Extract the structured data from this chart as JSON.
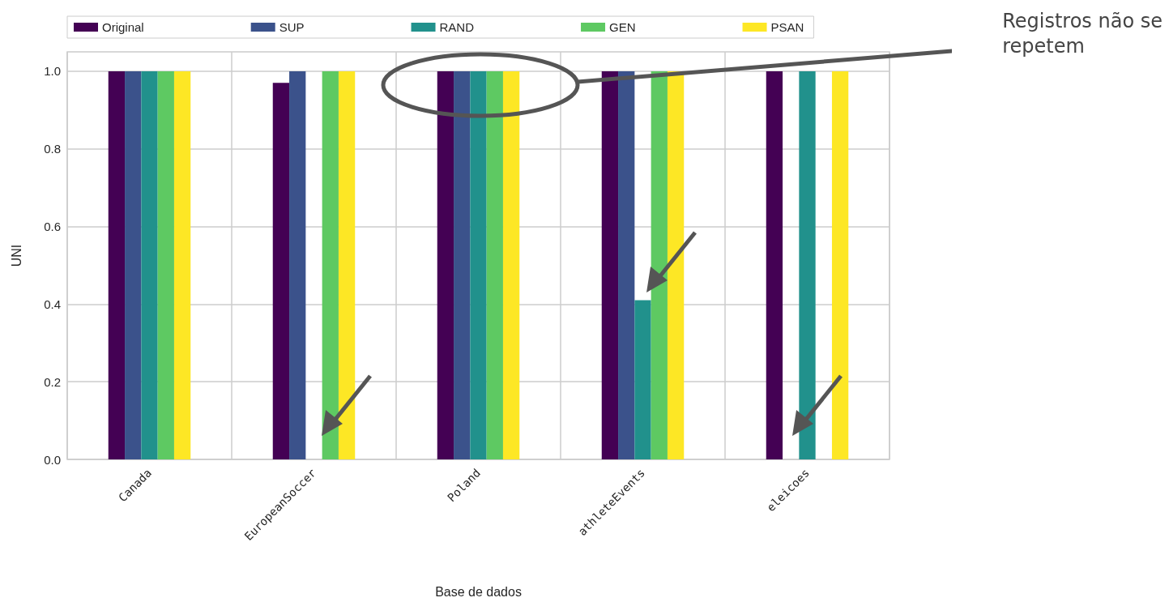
{
  "chart_data": {
    "type": "bar",
    "xlabel": "Base de dados",
    "ylabel": "UNI",
    "categories": [
      "Canada",
      "EuropeanSoccer",
      "Poland",
      "athleteEvents",
      "eleicoes"
    ],
    "series": [
      {
        "name": "Original",
        "color": "#440154",
        "values": [
          1.0,
          0.97,
          1.0,
          1.0,
          1.0
        ]
      },
      {
        "name": "SUP",
        "color": "#3b528b",
        "values": [
          1.0,
          1.0,
          1.0,
          1.0,
          0
        ]
      },
      {
        "name": "RAND",
        "color": "#21918c",
        "values": [
          1.0,
          0,
          1.0,
          0.41,
          1.0
        ]
      },
      {
        "name": "GEN",
        "color": "#5ec962",
        "values": [
          1.0,
          1.0,
          1.0,
          1.0,
          0
        ]
      },
      {
        "name": "PSAN",
        "color": "#fde725",
        "values": [
          1.0,
          1.0,
          1.0,
          1.0,
          1.0
        ]
      }
    ],
    "ylim": [
      0,
      1.05
    ],
    "yticks": [
      {
        "value": 0,
        "label": "0.0"
      },
      0.2,
      0.4,
      0.6,
      0.8,
      {
        "value": 1,
        "label": "1.0"
      }
    ],
    "grid": true,
    "legend": "top",
    "annotations": [
      "Registros não se repetem"
    ]
  }
}
